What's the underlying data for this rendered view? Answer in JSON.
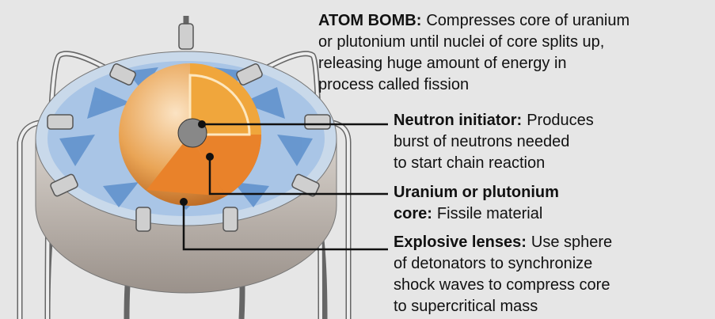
{
  "intro": {
    "term": "ATOM BOMB:",
    "lines": [
      "Compresses core of uranium",
      "or plutonium until nuclei of core splits up,",
      "releasing huge amount of energy in",
      "process called fission"
    ]
  },
  "labels": [
    {
      "term": "Neutron initiator:",
      "lines": [
        "Produces",
        "burst of neutrons needed",
        "to start chain reaction"
      ]
    },
    {
      "term": "Uranium or plutonium",
      "term2": "core:",
      "lines": [
        "Fissile material"
      ]
    },
    {
      "term": "Explosive lenses:",
      "lines": [
        "Use sphere",
        "of detonators to synchronize",
        "shock waves to compress core",
        "to supercritical mass"
      ]
    }
  ]
}
